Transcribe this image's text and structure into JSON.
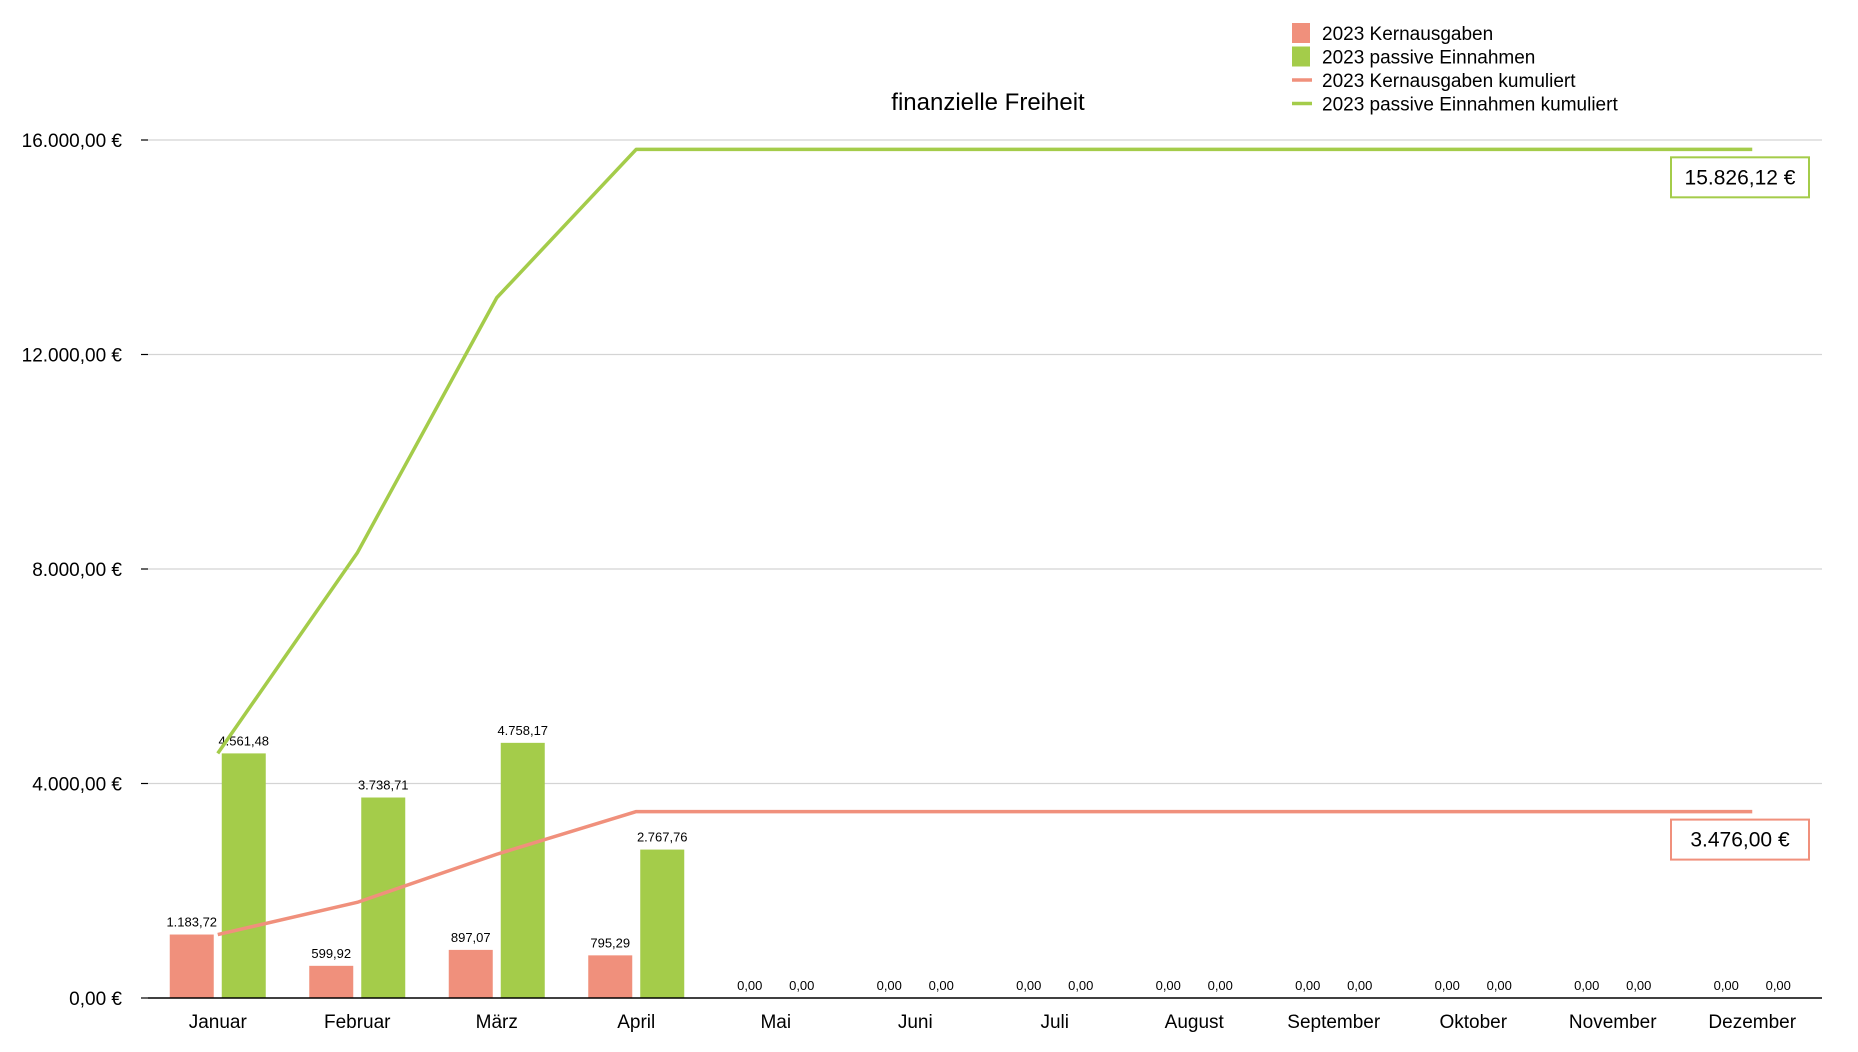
{
  "chart_data": {
    "type": "bar",
    "title": "finanzielle Freiheit",
    "categories": [
      "Januar",
      "Februar",
      "März",
      "April",
      "Mai",
      "Juni",
      "Juli",
      "August",
      "September",
      "Oktober",
      "November",
      "Dezember"
    ],
    "ylim": [
      0,
      16000
    ],
    "yticks": [
      {
        "value": 0,
        "label": "0,00 €"
      },
      {
        "value": 4000,
        "label": "4.000,00 €"
      },
      {
        "value": 8000,
        "label": "8.000,00 €"
      },
      {
        "value": 12000,
        "label": "12.000,00 €"
      },
      {
        "value": 16000,
        "label": "16.000,00 €"
      }
    ],
    "grid": true,
    "legend_position": "top-right",
    "series": [
      {
        "name": "2023 Kernausgaben",
        "kind": "bar",
        "color": "#f0907c",
        "values": [
          1183.72,
          599.92,
          897.07,
          795.29,
          0,
          0,
          0,
          0,
          0,
          0,
          0,
          0
        ],
        "labels": [
          "1.183,72",
          "599,92",
          "897,07",
          "795,29",
          "0,00",
          "0,00",
          "0,00",
          "0,00",
          "0,00",
          "0,00",
          "0,00",
          "0,00"
        ]
      },
      {
        "name": "2023 passive Einnahmen",
        "kind": "bar",
        "color": "#a4cc4a",
        "values": [
          4561.48,
          3738.71,
          4758.17,
          2767.76,
          0,
          0,
          0,
          0,
          0,
          0,
          0,
          0
        ],
        "labels": [
          "4.561,48",
          "3.738,71",
          "4.758,17",
          "2.767,76",
          "0,00",
          "0,00",
          "0,00",
          "0,00",
          "0,00",
          "0,00",
          "0,00",
          "0,00"
        ]
      },
      {
        "name": "2023 Kernausgaben kumuliert",
        "kind": "line",
        "color": "#f0907c",
        "values": [
          1183.72,
          1783.64,
          2680.71,
          3476.0,
          3476.0,
          3476.0,
          3476.0,
          3476.0,
          3476.0,
          3476.0,
          3476.0,
          3476.0
        ],
        "end_label": "3.476,00 €"
      },
      {
        "name": "2023 passive Einnahmen kumuliert",
        "kind": "line",
        "color": "#a4cc4a",
        "values": [
          4561.48,
          8300.19,
          13058.36,
          15826.12,
          15826.12,
          15826.12,
          15826.12,
          15826.12,
          15826.12,
          15826.12,
          15826.12,
          15826.12
        ],
        "end_label": "15.826,12 €"
      }
    ]
  }
}
